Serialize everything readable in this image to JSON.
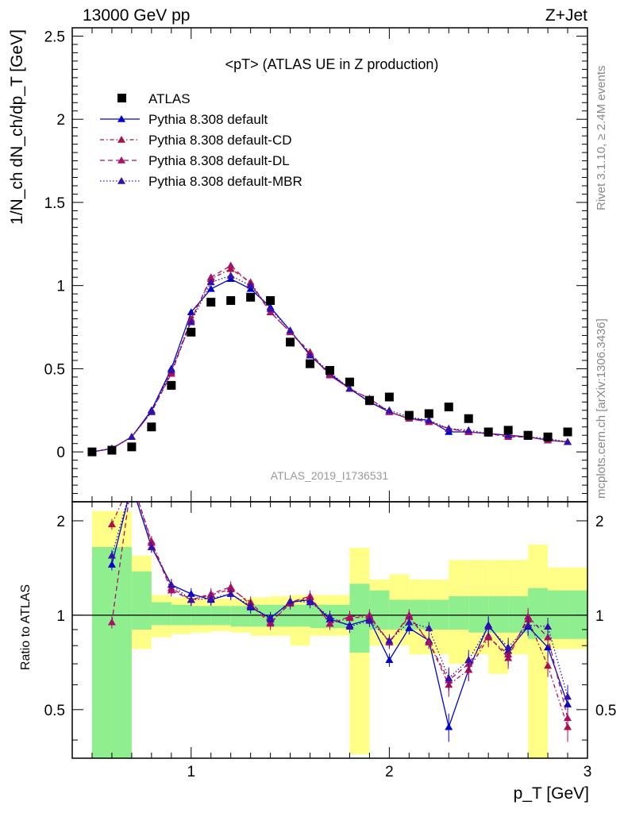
{
  "header": {
    "left": "13000 GeV pp",
    "right": "Z+Jet"
  },
  "side_labels": {
    "rivet": "Rivet 3.1.10, ≥ 2.4M events",
    "mcplots": "mcplots.cern.ch [arXiv:1306.3436]"
  },
  "chart_data": {
    "type": "scatter",
    "title": "<pT> (ATLAS UE in Z production)",
    "analysis": "ATLAS_2019_I1736531",
    "xlabel": "p_T [GeV]",
    "ylabel": "1/N_ch dN_ch/dp_T [GeV]",
    "ratio_ylabel": "Ratio to ATLAS",
    "xlim": [
      0.4,
      3.0
    ],
    "ylim": [
      -0.3,
      2.55
    ],
    "ratio_ylim": [
      0.35,
      2.3
    ],
    "x_ticks": [
      "1",
      "2",
      "3"
    ],
    "y_ticks": [
      "0",
      "0.5",
      "1",
      "1.5",
      "2",
      "2.5"
    ],
    "ratio_y_ticks": [
      "0.5",
      "1",
      "2"
    ],
    "legend_position": "top-left",
    "x": [
      0.5,
      0.6,
      0.7,
      0.8,
      0.9,
      1.0,
      1.1,
      1.2,
      1.3,
      1.4,
      1.5,
      1.6,
      1.7,
      1.8,
      1.9,
      2.0,
      2.1,
      2.2,
      2.3,
      2.4,
      2.5,
      2.6,
      2.7,
      2.8,
      2.9
    ],
    "data": {
      "name": "ATLAS",
      "color": "#000000",
      "values": [
        0.0,
        0.01,
        0.03,
        0.15,
        0.4,
        0.72,
        0.9,
        0.91,
        0.93,
        0.91,
        0.66,
        0.53,
        0.49,
        0.42,
        0.31,
        0.33,
        0.22,
        0.23,
        0.27,
        0.2,
        0.12,
        0.13,
        0.1,
        0.09,
        0.12
      ]
    },
    "series": [
      {
        "name": "Pythia 8.308 default",
        "color": "#0000cc",
        "dash": "solid",
        "values": [
          0.0,
          0.02,
          0.09,
          0.25,
          0.5,
          0.84,
          0.98,
          1.04,
          0.98,
          0.87,
          0.73,
          0.58,
          0.47,
          0.38,
          0.3,
          0.24,
          0.2,
          0.19,
          0.12,
          0.12,
          0.11,
          0.1,
          0.09,
          0.07,
          0.06
        ],
        "ratio": [
          null,
          1.45,
          2.6,
          1.65,
          1.25,
          1.17,
          1.12,
          1.17,
          1.06,
          0.98,
          1.1,
          1.12,
          0.97,
          0.93,
          0.97,
          0.72,
          0.91,
          0.83,
          0.44,
          0.67,
          0.93,
          0.77,
          0.92,
          0.79,
          0.52
        ]
      },
      {
        "name": "Pythia 8.308 default-CD",
        "color": "#aa1144",
        "dash": "5,3,1.5,3",
        "values": [
          0.0,
          0.02,
          0.09,
          0.24,
          0.48,
          0.8,
          1.04,
          1.1,
          1.02,
          0.84,
          0.72,
          0.6,
          0.46,
          0.38,
          0.32,
          0.24,
          0.2,
          0.18,
          0.14,
          0.12,
          0.11,
          0.1,
          0.09,
          0.07,
          0.06
        ],
        "ratio": [
          null,
          1.95,
          2.7,
          1.72,
          1.22,
          1.12,
          1.16,
          1.21,
          1.1,
          0.95,
          1.09,
          1.14,
          0.94,
          0.98,
          0.99,
          0.82,
          0.99,
          0.82,
          0.6,
          0.67,
          0.85,
          0.75,
          0.97,
          0.69,
          0.44
        ]
      },
      {
        "name": "Pythia 8.308 default-DL",
        "color": "#aa1166",
        "dash": "6,4",
        "values": [
          0.0,
          0.02,
          0.09,
          0.24,
          0.47,
          0.79,
          1.05,
          1.12,
          1.01,
          0.84,
          0.72,
          0.59,
          0.46,
          0.38,
          0.32,
          0.24,
          0.2,
          0.18,
          0.14,
          0.12,
          0.11,
          0.09,
          0.09,
          0.07,
          0.06
        ],
        "ratio": [
          null,
          0.95,
          2.7,
          1.7,
          1.2,
          1.12,
          1.17,
          1.23,
          1.08,
          0.94,
          1.1,
          1.15,
          0.94,
          0.99,
          1.0,
          0.82,
          1.0,
          0.82,
          0.62,
          0.7,
          0.86,
          0.73,
          0.99,
          0.85,
          0.47
        ]
      },
      {
        "name": "Pythia 8.308 default-MBR",
        "color": "#3311aa",
        "dash": "1.5,2.5",
        "values": [
          0.0,
          0.02,
          0.09,
          0.24,
          0.49,
          0.78,
          1.02,
          1.06,
          1.0,
          0.86,
          0.73,
          0.58,
          0.48,
          0.38,
          0.3,
          0.25,
          0.21,
          0.19,
          0.14,
          0.13,
          0.11,
          0.1,
          0.09,
          0.08,
          0.06
        ],
        "ratio": [
          null,
          1.55,
          2.6,
          1.65,
          1.25,
          1.12,
          1.13,
          1.17,
          1.07,
          0.97,
          1.11,
          1.1,
          0.99,
          0.92,
          0.96,
          0.83,
          0.95,
          0.91,
          0.63,
          0.72,
          0.92,
          0.79,
          0.93,
          0.92,
          0.55
        ]
      }
    ],
    "ratio_bands": {
      "edges": [
        0.55,
        0.65,
        0.75,
        0.85,
        0.95,
        1.05,
        1.15,
        1.25,
        1.35,
        1.45,
        1.55,
        1.65,
        1.75,
        1.85,
        1.95,
        2.05,
        2.15,
        2.25,
        2.35,
        2.45,
        2.55,
        2.65,
        2.75,
        2.85,
        2.95
      ],
      "stat": [
        [
          0.3,
          1.65
        ],
        [
          0.3,
          1.65
        ],
        [
          0.9,
          1.38
        ],
        [
          0.93,
          1.1
        ],
        [
          0.93,
          1.08
        ],
        [
          0.93,
          1.07
        ],
        [
          0.93,
          1.07
        ],
        [
          0.92,
          1.07
        ],
        [
          0.92,
          1.08
        ],
        [
          0.92,
          1.08
        ],
        [
          0.92,
          1.08
        ],
        [
          0.91,
          1.08
        ],
        [
          0.91,
          1.08
        ],
        [
          0.76,
          1.26
        ],
        [
          0.9,
          1.2
        ],
        [
          0.9,
          1.12
        ],
        [
          0.9,
          1.12
        ],
        [
          0.9,
          1.12
        ],
        [
          0.9,
          1.15
        ],
        [
          0.88,
          1.15
        ],
        [
          0.88,
          1.15
        ],
        [
          0.88,
          1.15
        ],
        [
          0.84,
          1.22
        ],
        [
          0.84,
          1.2
        ],
        [
          0.84,
          1.2
        ]
      ],
      "syst": [
        [
          0.3,
          2.15
        ],
        [
          0.3,
          2.15
        ],
        [
          0.78,
          1.55
        ],
        [
          0.85,
          1.16
        ],
        [
          0.87,
          1.14
        ],
        [
          0.88,
          1.13
        ],
        [
          0.89,
          1.13
        ],
        [
          0.88,
          1.13
        ],
        [
          0.86,
          1.14
        ],
        [
          0.86,
          1.15
        ],
        [
          0.8,
          1.16
        ],
        [
          0.86,
          1.16
        ],
        [
          0.86,
          1.16
        ],
        [
          0.36,
          1.64
        ],
        [
          0.8,
          1.3
        ],
        [
          0.8,
          1.35
        ],
        [
          0.75,
          1.3
        ],
        [
          0.75,
          1.3
        ],
        [
          0.7,
          1.5
        ],
        [
          0.75,
          1.5
        ],
        [
          0.65,
          1.5
        ],
        [
          0.75,
          1.5
        ],
        [
          0.35,
          1.68
        ],
        [
          0.78,
          1.42
        ],
        [
          0.78,
          1.42
        ]
      ]
    }
  }
}
